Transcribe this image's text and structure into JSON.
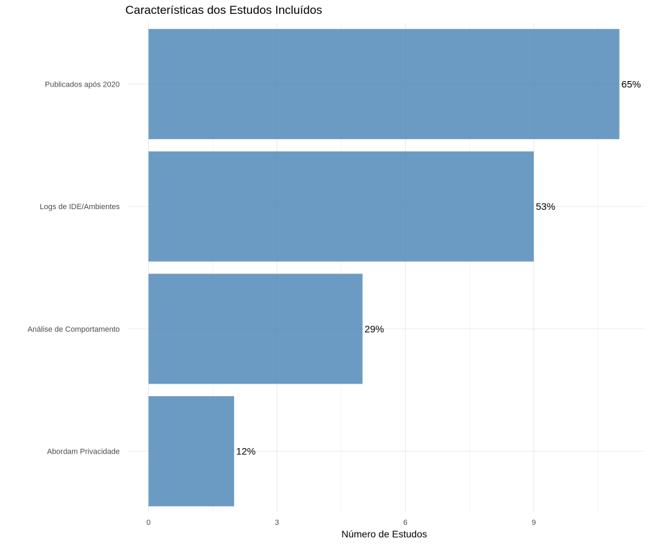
{
  "chart_data": {
    "type": "bar",
    "orientation": "horizontal",
    "title": "Características dos Estudos Incluídos",
    "xlabel": "Número de Estudos",
    "ylabel": "",
    "categories": [
      "Publicados após 2020",
      "Logs de IDE/Ambientes",
      "Análise de Comportamento",
      "Abordam Privacidade"
    ],
    "values": [
      11,
      9,
      5,
      2
    ],
    "data_labels": [
      "65%",
      "53%",
      "29%",
      "12%"
    ],
    "x_ticks": [
      0,
      3,
      6,
      9
    ],
    "x_tick_labels": [
      "0",
      "3",
      "6",
      "9"
    ],
    "xlim": [
      0,
      11.55
    ],
    "grid": true,
    "legend": "none",
    "bar_color": "#4682B4",
    "bar_opacity": 0.8
  }
}
